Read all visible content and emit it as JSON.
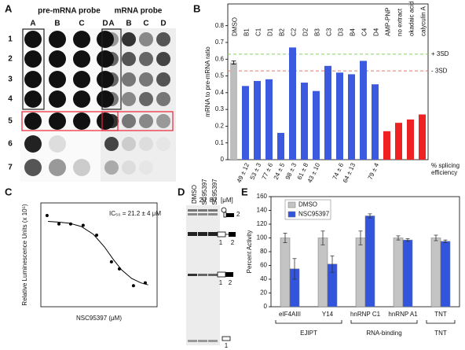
{
  "panel_a": {
    "label": "A",
    "titles": [
      "pre-mRNA probe",
      "mRNA probe"
    ],
    "columns": [
      "A",
      "B",
      "C",
      "D"
    ],
    "rows": [
      "1",
      "2",
      "3",
      "4",
      "5",
      "6",
      "7"
    ]
  },
  "panel_d": {
    "label": "D",
    "lanes": [
      "DMSO",
      "NSC95397",
      "NSC95397"
    ],
    "doses": [
      "-",
      "20",
      "80"
    ],
    "unit": "[μM]",
    "band_labels": [
      "2",
      "1",
      "2",
      "1",
      "2",
      "1"
    ]
  },
  "chart_data": [
    {
      "type": "bar",
      "panel_label": "B",
      "ylabel": "mRNA to pre-mRNA ratio",
      "categories": [
        "DMSO",
        "B1",
        "C1",
        "D1",
        "B2",
        "C2",
        "D2",
        "B3",
        "C3",
        "D3",
        "B4",
        "C4",
        "D4",
        "AMP-PNP",
        "no extract",
        "okadaic acid",
        "calyculin A"
      ],
      "values": [
        0.58,
        0.44,
        0.47,
        0.48,
        0.16,
        0.67,
        0.46,
        0.41,
        0.56,
        0.52,
        0.51,
        0.59,
        0.45,
        0.17,
        0.22,
        0.24,
        0.27
      ],
      "errors": [
        0.01,
        null,
        null,
        null,
        null,
        null,
        null,
        null,
        null,
        null,
        null,
        null,
        null,
        null,
        null,
        null,
        null
      ],
      "colors": [
        "#bdbdbd",
        "#3c5ae0",
        "#3c5ae0",
        "#3c5ae0",
        "#3c5ae0",
        "#3c5ae0",
        "#3c5ae0",
        "#3c5ae0",
        "#3c5ae0",
        "#3c5ae0",
        "#3c5ae0",
        "#3c5ae0",
        "#3c5ae0",
        "#ee2222",
        "#ee2222",
        "#ee2222",
        "#ee2222"
      ],
      "splicing_labels": [
        null,
        "49 ± 12",
        "53 ± 3",
        "77 ± 6",
        "24 ± 5",
        "98 ± 3",
        "61 ± 8",
        "43 ± 10",
        null,
        "74 ± 6",
        "64 ± 13",
        null,
        "79 ± 4",
        null,
        null,
        null,
        null
      ],
      "splicing_title": [
        "% splicing",
        "efficiency"
      ],
      "thresholds": [
        {
          "label": "+ 3SD",
          "value": 0.63,
          "color": "#8bcf5a"
        },
        {
          "label": "- 3SD",
          "value": 0.53,
          "color": "#e07a6e"
        }
      ],
      "ylim": [
        0,
        0.93
      ],
      "yticks": [
        0,
        0.1,
        0.2,
        0.3,
        0.4,
        0.5,
        0.6,
        0.7,
        0.8
      ]
    },
    {
      "type": "scatter",
      "panel_label": "C",
      "xlabel": "NSC95397  (μM)",
      "ylabel": "Relative Luminescence Units (x 10⁵)",
      "annotation": "IC₅₀ = 21.2  ± 4 μM",
      "xscale": "log",
      "x": [
        0.57,
        1.12,
        2.18,
        4.45,
        9.6,
        22.3,
        35,
        78,
        153
      ],
      "values": [
        4.15,
        3.85,
        3.85,
        3.8,
        3.45,
        2.5,
        2.25,
        1.65,
        1.75
      ],
      "fit": {
        "x": [
          0.6,
          1,
          2,
          4,
          8,
          15,
          25,
          40,
          70,
          120,
          180
        ],
        "values": [
          3.94,
          3.92,
          3.88,
          3.76,
          3.48,
          3.03,
          2.58,
          2.21,
          1.91,
          1.75,
          1.68
        ]
      },
      "xlim": [
        0.4,
        300
      ],
      "ylim": [
        0.9,
        4.6
      ]
    },
    {
      "type": "grouped_bar",
      "panel_label": "E",
      "ylabel": "Percent Activity",
      "categories": [
        "eIF4AIII",
        "Y14",
        "hnRNP C1",
        "hnRNP A1",
        "TNT"
      ],
      "series": [
        {
          "name": "DMSO",
          "color": "#c4c4c4",
          "values": [
            100,
            100,
            100,
            100,
            100
          ],
          "errors": [
            7,
            10,
            10,
            3,
            4
          ]
        },
        {
          "name": "NSC95397",
          "color": "#3355dd",
          "values": [
            55,
            62,
            132,
            97,
            95
          ],
          "errors": [
            15,
            12,
            3,
            2,
            2
          ]
        }
      ],
      "groups": [
        "EJIPT",
        "RNA-binding",
        "TNT"
      ],
      "legend": "upper left",
      "ylim": [
        0,
        160
      ],
      "yticks": [
        0,
        20,
        40,
        60,
        80,
        100,
        120,
        140,
        160
      ]
    }
  ]
}
